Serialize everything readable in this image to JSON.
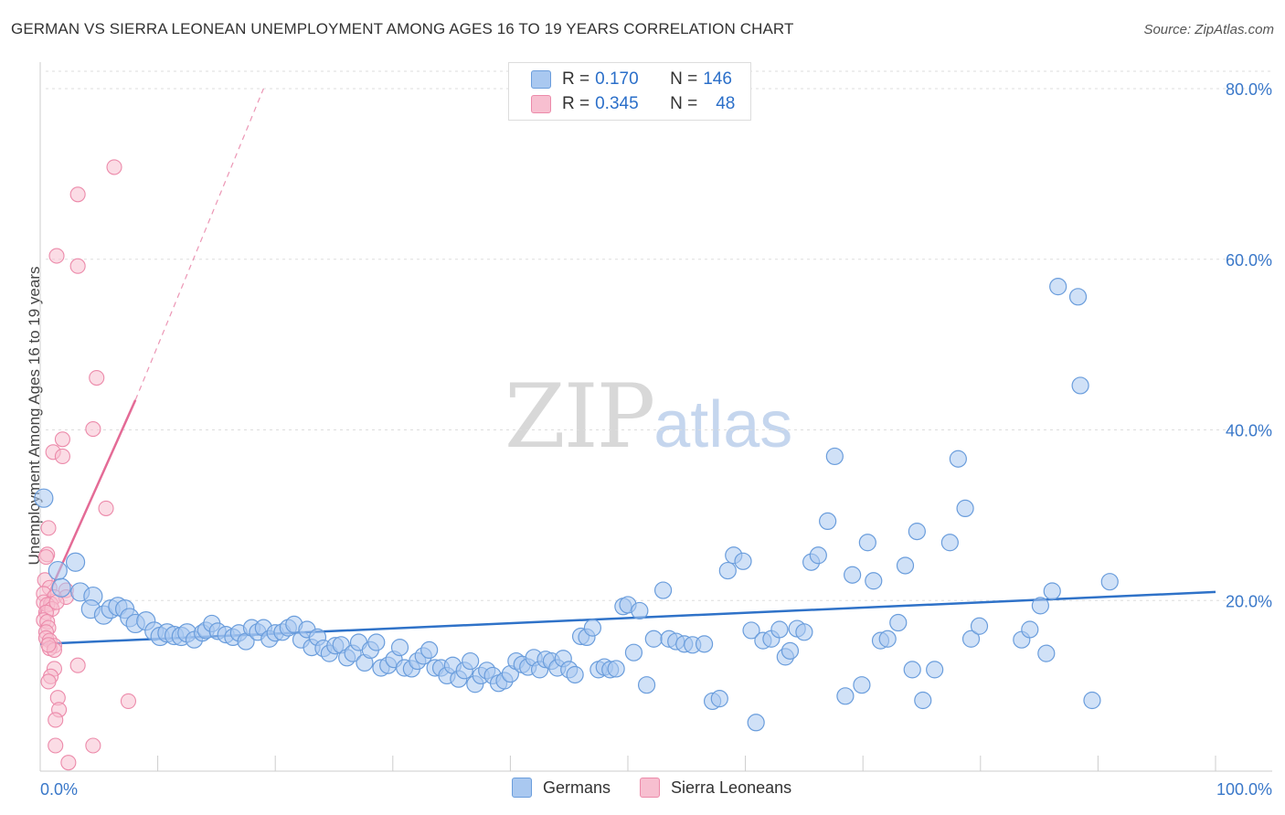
{
  "title": "GERMAN VS SIERRA LEONEAN UNEMPLOYMENT AMONG AGES 16 TO 19 YEARS CORRELATION CHART",
  "source": "Source: ZipAtlas.com",
  "watermark": {
    "zip": "ZIP",
    "atlas": "atlas"
  },
  "legend": {
    "r_label": "R =",
    "n_label": "N =",
    "germans": {
      "r": "0.170",
      "n": "146"
    },
    "sierra": {
      "r": "0.345",
      "n": "48"
    }
  },
  "bottom_legend": {
    "germans": "Germans",
    "sierra": "Sierra Leoneans"
  },
  "colors": {
    "germans_fill": "#a9c8f0",
    "germans_stroke": "#6a9ddc",
    "germans_line": "#2f72c8",
    "sierra_fill": "#f7bfd0",
    "sierra_stroke": "#ec8aaa",
    "sierra_line": "#e46b96",
    "grid": "#dddddd",
    "axis_text": "#3a78c9"
  },
  "chart_data": {
    "type": "scatter",
    "title": "GERMAN VS SIERRA LEONEAN UNEMPLOYMENT AMONG AGES 16 TO 19 YEARS CORRELATION CHART",
    "xlabel": "",
    "ylabel": "Unemployment Among Ages 16 to 19 years",
    "xlim": [
      0,
      100
    ],
    "ylim": [
      0,
      80
    ],
    "x_tick_labels": [
      "0.0%",
      "100.0%"
    ],
    "y_ticks": [
      20,
      40,
      60,
      80
    ],
    "y_tick_labels": [
      "20.0%",
      "40.0%",
      "60.0%",
      "80.0%"
    ],
    "grid": true,
    "legend_position": "top-center",
    "series": [
      {
        "name": "Germans",
        "trend": {
          "x": [
            0,
            100
          ],
          "y": [
            14.9,
            21.0
          ],
          "style": "solid"
        },
        "points": [
          [
            0.3,
            32
          ],
          [
            1.5,
            23.5
          ],
          [
            3,
            24.5
          ],
          [
            1.8,
            21.5
          ],
          [
            3.4,
            21
          ],
          [
            4.5,
            20.5
          ],
          [
            4.3,
            19
          ],
          [
            5.4,
            18.3
          ],
          [
            6,
            19
          ],
          [
            6.6,
            19.3
          ],
          [
            7.2,
            19
          ],
          [
            7.6,
            18
          ],
          [
            8.1,
            17.3
          ],
          [
            9,
            17.6
          ],
          [
            9.7,
            16.4
          ],
          [
            10.2,
            15.8
          ],
          [
            10.8,
            16.2
          ],
          [
            11.4,
            15.9
          ],
          [
            12,
            15.8
          ],
          [
            12.5,
            16.2
          ],
          [
            13.1,
            15.4
          ],
          [
            13.8,
            16.2
          ],
          [
            14.1,
            16.5
          ],
          [
            14.6,
            17.3
          ],
          [
            15.1,
            16.4
          ],
          [
            15.8,
            16
          ],
          [
            16.4,
            15.7
          ],
          [
            16.9,
            16.2
          ],
          [
            17.5,
            15.2
          ],
          [
            18,
            16.8
          ],
          [
            18.5,
            16.3
          ],
          [
            19,
            16.8
          ],
          [
            19.5,
            15.5
          ],
          [
            20,
            16.2
          ],
          [
            20.6,
            16.3
          ],
          [
            21.1,
            16.8
          ],
          [
            21.6,
            17.2
          ],
          [
            22.2,
            15.4
          ],
          [
            22.7,
            16.6
          ],
          [
            23.1,
            14.5
          ],
          [
            23.6,
            15.7
          ],
          [
            24.1,
            14.4
          ],
          [
            24.6,
            13.8
          ],
          [
            25.1,
            14.7
          ],
          [
            25.6,
            14.8
          ],
          [
            26.1,
            13.3
          ],
          [
            26.6,
            13.8
          ],
          [
            27.1,
            15.1
          ],
          [
            27.6,
            12.7
          ],
          [
            28.1,
            14.2
          ],
          [
            28.6,
            15.1
          ],
          [
            29,
            12.1
          ],
          [
            29.6,
            12.4
          ],
          [
            30.1,
            13.1
          ],
          [
            30.6,
            14.5
          ],
          [
            31,
            12.1
          ],
          [
            31.6,
            12
          ],
          [
            32.1,
            12.9
          ],
          [
            32.6,
            13.5
          ],
          [
            33.1,
            14.2
          ],
          [
            33.6,
            12.1
          ],
          [
            34.1,
            12.1
          ],
          [
            34.6,
            11.2
          ],
          [
            35.1,
            12.4
          ],
          [
            35.6,
            10.8
          ],
          [
            36.1,
            11.8
          ],
          [
            36.6,
            12.9
          ],
          [
            37,
            10.2
          ],
          [
            37.5,
            11.2
          ],
          [
            38,
            11.8
          ],
          [
            38.5,
            11.2
          ],
          [
            39,
            10.3
          ],
          [
            39.5,
            10.6
          ],
          [
            40,
            11.4
          ],
          [
            40.5,
            12.9
          ],
          [
            41,
            12.5
          ],
          [
            41.5,
            12.2
          ],
          [
            42,
            13.3
          ],
          [
            42.5,
            11.9
          ],
          [
            43,
            13.1
          ],
          [
            43.5,
            12.9
          ],
          [
            44,
            12.1
          ],
          [
            44.5,
            13.2
          ],
          [
            45,
            11.9
          ],
          [
            45.5,
            11.3
          ],
          [
            46,
            15.8
          ],
          [
            46.5,
            15.7
          ],
          [
            47,
            16.8
          ],
          [
            47.5,
            11.9
          ],
          [
            48,
            12.2
          ],
          [
            48.5,
            11.9
          ],
          [
            49,
            12
          ],
          [
            49.6,
            19.3
          ],
          [
            50,
            19.5
          ],
          [
            50.5,
            13.9
          ],
          [
            51,
            18.8
          ],
          [
            51.6,
            10.1
          ],
          [
            52.2,
            15.5
          ],
          [
            53,
            21.2
          ],
          [
            53.5,
            15.5
          ],
          [
            54.1,
            15.2
          ],
          [
            54.8,
            14.9
          ],
          [
            55.5,
            14.8
          ],
          [
            56.5,
            14.9
          ],
          [
            57.2,
            8.2
          ],
          [
            57.8,
            8.5
          ],
          [
            58.5,
            23.5
          ],
          [
            59,
            25.3
          ],
          [
            59.8,
            24.6
          ],
          [
            60.5,
            16.5
          ],
          [
            60.9,
            5.7
          ],
          [
            61.5,
            15.3
          ],
          [
            62.2,
            15.5
          ],
          [
            62.9,
            16.6
          ],
          [
            63.4,
            13.4
          ],
          [
            63.8,
            14.1
          ],
          [
            64.4,
            16.7
          ],
          [
            65,
            16.3
          ],
          [
            65.6,
            24.5
          ],
          [
            66.2,
            25.3
          ],
          [
            67,
            29.3
          ],
          [
            67.6,
            36.9
          ],
          [
            68.5,
            8.8
          ],
          [
            69.1,
            23
          ],
          [
            69.9,
            10.1
          ],
          [
            70.4,
            26.8
          ],
          [
            70.9,
            22.3
          ],
          [
            71.5,
            15.3
          ],
          [
            72.1,
            15.5
          ],
          [
            73,
            17.4
          ],
          [
            73.6,
            24.1
          ],
          [
            74.2,
            11.9
          ],
          [
            74.6,
            28.1
          ],
          [
            75.1,
            8.3
          ],
          [
            76.1,
            11.9
          ],
          [
            77.4,
            26.8
          ],
          [
            78.1,
            36.6
          ],
          [
            78.7,
            30.8
          ],
          [
            79.2,
            15.5
          ],
          [
            79.9,
            17
          ],
          [
            83.5,
            15.4
          ],
          [
            84.2,
            16.6
          ],
          [
            85.1,
            19.4
          ],
          [
            85.6,
            13.8
          ],
          [
            86.1,
            21.1
          ],
          [
            86.6,
            56.8
          ],
          [
            88.3,
            55.6
          ],
          [
            88.5,
            45.2
          ],
          [
            89.5,
            8.3
          ],
          [
            91,
            22.2
          ]
        ]
      },
      {
        "name": "Sierra Leoneans",
        "trend": {
          "x": [
            0,
            8.1
          ],
          "y": [
            18.5,
            43.5
          ],
          "style": "solid"
        },
        "trend_extension": {
          "x": [
            8.1,
            19
          ],
          "y": [
            43.5,
            80
          ],
          "style": "dashed"
        },
        "points": [
          [
            6.3,
            70.8
          ],
          [
            3.2,
            67.6
          ],
          [
            1.4,
            60.4
          ],
          [
            3.2,
            59.2
          ],
          [
            4.8,
            46.1
          ],
          [
            4.5,
            40.1
          ],
          [
            1.9,
            38.9
          ],
          [
            1.1,
            37.4
          ],
          [
            1.9,
            36.9
          ],
          [
            5.6,
            30.8
          ],
          [
            0.7,
            28.5
          ],
          [
            0.6,
            25.4
          ],
          [
            0.5,
            25.1
          ],
          [
            0.4,
            22.4
          ],
          [
            0.8,
            21.5
          ],
          [
            2.2,
            21.2
          ],
          [
            0.3,
            20.8
          ],
          [
            1.2,
            20.4
          ],
          [
            2.2,
            20.4
          ],
          [
            0.3,
            19.8
          ],
          [
            0.9,
            19.6
          ],
          [
            0.6,
            19.5
          ],
          [
            1,
            19
          ],
          [
            1.4,
            19.8
          ],
          [
            0.5,
            18.6
          ],
          [
            0.3,
            17.7
          ],
          [
            0.6,
            17.5
          ],
          [
            0.7,
            16.8
          ],
          [
            0.5,
            16.3
          ],
          [
            0.5,
            15.6
          ],
          [
            0.8,
            15.3
          ],
          [
            1.2,
            14.7
          ],
          [
            0.8,
            14.4
          ],
          [
            1.2,
            14.2
          ],
          [
            0.7,
            14.8
          ],
          [
            3.2,
            12.4
          ],
          [
            1.2,
            12
          ],
          [
            0.9,
            11.1
          ],
          [
            0.7,
            10.5
          ],
          [
            1.5,
            8.6
          ],
          [
            1.6,
            7.2
          ],
          [
            7.5,
            8.2
          ],
          [
            1.3,
            6
          ],
          [
            1.3,
            3
          ],
          [
            4.5,
            3
          ],
          [
            2.4,
            1
          ]
        ]
      }
    ]
  }
}
